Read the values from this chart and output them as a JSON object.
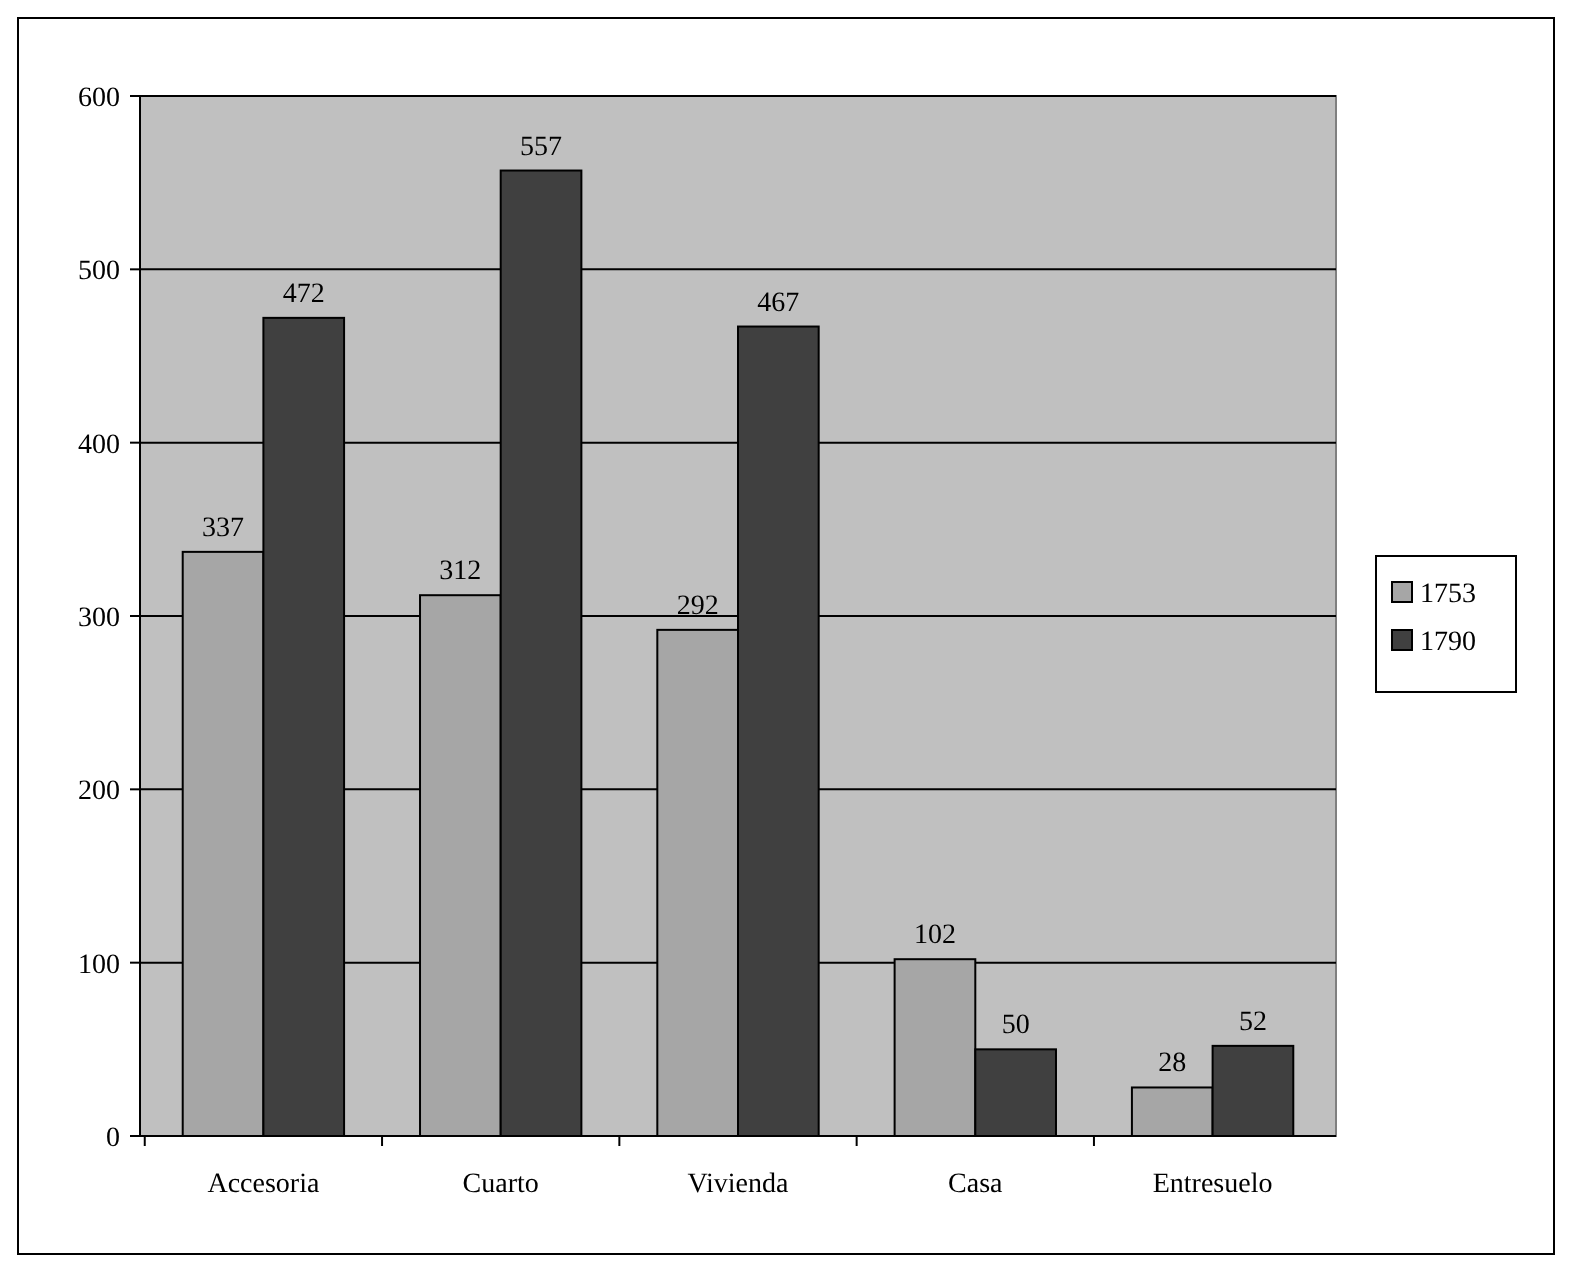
{
  "chart_data": {
    "type": "bar",
    "categories": [
      "Accesoria",
      "Cuarto",
      "Vivienda",
      "Casa",
      "Entresuelo"
    ],
    "series": [
      {
        "name": "1753",
        "color": "#a6a6a6",
        "values": [
          337,
          312,
          292,
          102,
          28
        ]
      },
      {
        "name": "1790",
        "color": "#404040",
        "values": [
          472,
          557,
          467,
          50,
          52
        ]
      }
    ],
    "ylim": [
      0,
      600
    ],
    "yticks": [
      0,
      100,
      200,
      300,
      400,
      500,
      600
    ],
    "grid": "y",
    "legend": "right",
    "data_labels": true
  }
}
